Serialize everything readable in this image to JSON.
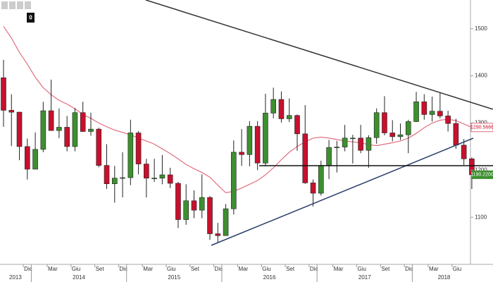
{
  "chart_data": {
    "type": "candlestick",
    "badge": "0",
    "categories": [
      "2013-09",
      "2013-10",
      "2013-11",
      "2013-12",
      "2014-01",
      "2014-02",
      "2014-03",
      "2014-04",
      "2014-05",
      "2014-06",
      "2014-07",
      "2014-08",
      "2014-09",
      "2014-10",
      "2014-11",
      "2014-12",
      "2015-01",
      "2015-02",
      "2015-03",
      "2015-04",
      "2015-05",
      "2015-06",
      "2015-07",
      "2015-08",
      "2015-09",
      "2015-10",
      "2015-11",
      "2015-12",
      "2016-01",
      "2016-02",
      "2016-03",
      "2016-04",
      "2016-05",
      "2016-06",
      "2016-07",
      "2016-08",
      "2016-09",
      "2016-10",
      "2016-11",
      "2016-12",
      "2017-01",
      "2017-02",
      "2017-03",
      "2017-04",
      "2017-05",
      "2017-06",
      "2017-07",
      "2017-08",
      "2017-09",
      "2017-10",
      "2017-11",
      "2017-12",
      "2018-01",
      "2018-02",
      "2018-03",
      "2018-04",
      "2018-05",
      "2018-06",
      "2018-07",
      "2018-08"
    ],
    "open": [
      1396,
      1327,
      1323,
      1250,
      1202,
      1244,
      1326,
      1284,
      1291,
      1250,
      1322,
      1282,
      1287,
      1210,
      1171,
      1183,
      1184,
      1279,
      1213,
      1183,
      1183,
      1190,
      1172,
      1095,
      1135,
      1115,
      1142,
      1065,
      1061,
      1118,
      1238,
      1233,
      1293,
      1215,
      1321,
      1350,
      1309,
      1316,
      1277,
      1173,
      1151,
      1210,
      1248,
      1249,
      1268,
      1268,
      1242,
      1269,
      1322,
      1279,
      1271,
      1275,
      1303,
      1345,
      1318,
      1325,
      1315,
      1299,
      1253,
      1224
    ],
    "high": [
      1434,
      1361,
      1324,
      1267,
      1280,
      1345,
      1392,
      1331,
      1315,
      1332,
      1345,
      1322,
      1290,
      1255,
      1209,
      1238,
      1307,
      1283,
      1224,
      1224,
      1232,
      1205,
      1175,
      1170,
      1157,
      1191,
      1145,
      1088,
      1128,
      1263,
      1287,
      1304,
      1304,
      1362,
      1375,
      1367,
      1352,
      1318,
      1338,
      1180,
      1220,
      1264,
      1262,
      1296,
      1275,
      1296,
      1274,
      1331,
      1357,
      1306,
      1299,
      1307,
      1366,
      1361,
      1356,
      1365,
      1326,
      1309,
      1266,
      1227
    ],
    "low": [
      1292,
      1251,
      1221,
      1180,
      1202,
      1238,
      1285,
      1268,
      1240,
      1240,
      1281,
      1273,
      1206,
      1160,
      1131,
      1142,
      1168,
      1191,
      1142,
      1175,
      1170,
      1162,
      1077,
      1084,
      1098,
      1098,
      1052,
      1046,
      1061,
      1106,
      1209,
      1208,
      1200,
      1208,
      1310,
      1301,
      1302,
      1241,
      1171,
      1123,
      1146,
      1181,
      1195,
      1240,
      1214,
      1236,
      1205,
      1256,
      1274,
      1261,
      1264,
      1236,
      1302,
      1307,
      1303,
      1310,
      1282,
      1245,
      1211,
      1160
    ],
    "close": [
      1327,
      1323,
      1250,
      1202,
      1244,
      1326,
      1284,
      1291,
      1250,
      1322,
      1282,
      1287,
      1210,
      1171,
      1183,
      1184,
      1279,
      1213,
      1183,
      1183,
      1190,
      1172,
      1095,
      1135,
      1115,
      1142,
      1065,
      1061,
      1118,
      1238,
      1233,
      1293,
      1215,
      1321,
      1350,
      1309,
      1316,
      1277,
      1173,
      1151,
      1210,
      1248,
      1249,
      1268,
      1268,
      1242,
      1269,
      1322,
      1279,
      1271,
      1275,
      1303,
      1345,
      1318,
      1325,
      1315,
      1299,
      1253,
      1224,
      1190.22
    ],
    "close_label": "1190.2200",
    "up_color": "#3d8f2f",
    "down_color": "#c8102e",
    "moving_average": {
      "color": "#e07080",
      "label": "1290.5666",
      "values": [
        1505,
        1480,
        1450,
        1425,
        1397,
        1375,
        1360,
        1348,
        1340,
        1330,
        1318,
        1310,
        1300,
        1292,
        1285,
        1280,
        1275,
        1268,
        1262,
        1255,
        1245,
        1235,
        1224,
        1212,
        1203,
        1195,
        1185,
        1168,
        1152,
        1155,
        1162,
        1170,
        1178,
        1190,
        1205,
        1222,
        1238,
        1250,
        1260,
        1268,
        1270,
        1268,
        1265,
        1262,
        1260,
        1258,
        1254,
        1252,
        1255,
        1258,
        1262,
        1268,
        1278,
        1290,
        1300,
        1306,
        1308,
        1305,
        1298,
        1290.5666
      ]
    },
    "ylim": [
      1000,
      1561
    ],
    "yticks": [
      1100,
      1200,
      1300,
      1400,
      1500
    ],
    "xticks": [
      {
        "value": "2013-12",
        "label": "Dic"
      },
      {
        "value": "2014-03",
        "label": "Mar"
      },
      {
        "value": "2014-06",
        "label": "Giu"
      },
      {
        "value": "2014-09",
        "label": "Set"
      },
      {
        "value": "2014-12",
        "label": "Dic"
      },
      {
        "value": "2015-03",
        "label": "Mar"
      },
      {
        "value": "2015-06",
        "label": "Giu"
      },
      {
        "value": "2015-09",
        "label": "Set"
      },
      {
        "value": "2015-12",
        "label": "Dic"
      },
      {
        "value": "2016-03",
        "label": "Mar"
      },
      {
        "value": "2016-06",
        "label": "Giu"
      },
      {
        "value": "2016-09",
        "label": "Set"
      },
      {
        "value": "2016-12",
        "label": "Dic"
      },
      {
        "value": "2017-03",
        "label": "Mar"
      },
      {
        "value": "2017-06",
        "label": "Giu"
      },
      {
        "value": "2017-09",
        "label": "Set"
      },
      {
        "value": "2017-12",
        "label": "Dic"
      },
      {
        "value": "2018-03",
        "label": "Mar"
      },
      {
        "value": "2018-06",
        "label": "Giu"
      }
    ],
    "years": [
      "2013",
      "2014",
      "2015",
      "2016",
      "2017",
      "2018"
    ]
  }
}
